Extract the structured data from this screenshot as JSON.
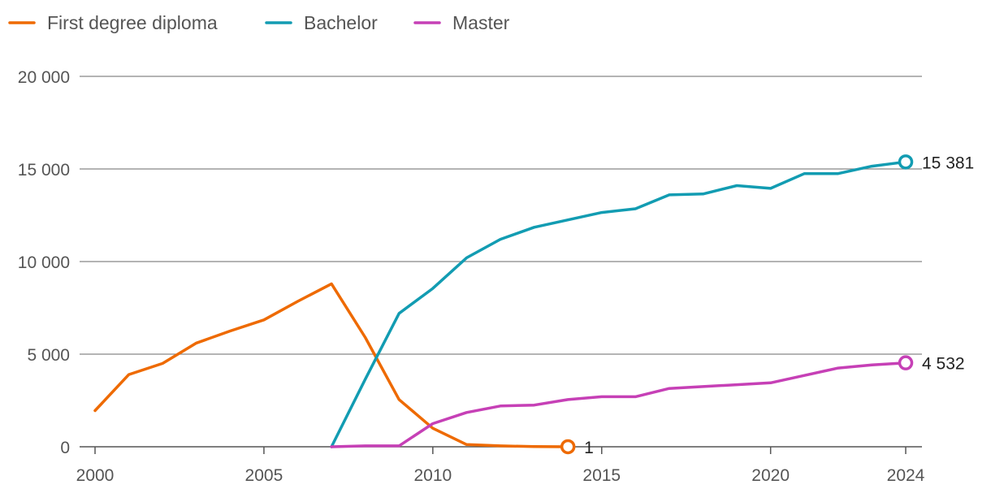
{
  "chart_data": {
    "type": "line",
    "title": "",
    "xlabel": "",
    "ylabel": "",
    "xlim": [
      2000,
      2024
    ],
    "ylim": [
      0,
      20000
    ],
    "x_ticks": [
      2000,
      2005,
      2010,
      2015,
      2020,
      2024
    ],
    "x_tick_labels": [
      "2000",
      "2005",
      "2010",
      "2015",
      "2020",
      "2024"
    ],
    "y_ticks": [
      0,
      5000,
      10000,
      15000,
      20000
    ],
    "y_tick_labels": [
      "0",
      "5 000",
      "10 000",
      "15 000",
      "20 000"
    ],
    "grid": true,
    "legend_position": "top-left",
    "series": [
      {
        "name": "First degree diploma",
        "color": "#ee6a00",
        "x": [
          2000,
          2001,
          2002,
          2003,
          2004,
          2005,
          2006,
          2007,
          2008,
          2009,
          2010,
          2011,
          2012,
          2013,
          2014
        ],
        "values": [
          1950,
          3900,
          4500,
          5600,
          6250,
          6850,
          7850,
          8800,
          5900,
          2550,
          1000,
          120,
          50,
          10,
          1
        ],
        "end_label": "1"
      },
      {
        "name": "Bachelor",
        "color": "#129cb2",
        "x": [
          2007,
          2008,
          2009,
          2010,
          2011,
          2012,
          2013,
          2014,
          2015,
          2016,
          2017,
          2018,
          2019,
          2020,
          2021,
          2022,
          2023,
          2024
        ],
        "values": [
          0,
          3650,
          7200,
          8550,
          10200,
          11200,
          11850,
          12250,
          12650,
          12850,
          13600,
          13650,
          14100,
          13950,
          14750,
          14750,
          15150,
          15381
        ],
        "end_label": "15 381"
      },
      {
        "name": "Master",
        "color": "#c640b6",
        "x": [
          2007,
          2008,
          2009,
          2010,
          2011,
          2012,
          2013,
          2014,
          2015,
          2016,
          2017,
          2018,
          2019,
          2020,
          2021,
          2022,
          2023,
          2024
        ],
        "values": [
          0,
          50,
          50,
          1250,
          1850,
          2200,
          2250,
          2550,
          2700,
          2700,
          3150,
          3250,
          3350,
          3450,
          3850,
          4250,
          4420,
          4532
        ],
        "end_label": "4 532"
      }
    ]
  }
}
